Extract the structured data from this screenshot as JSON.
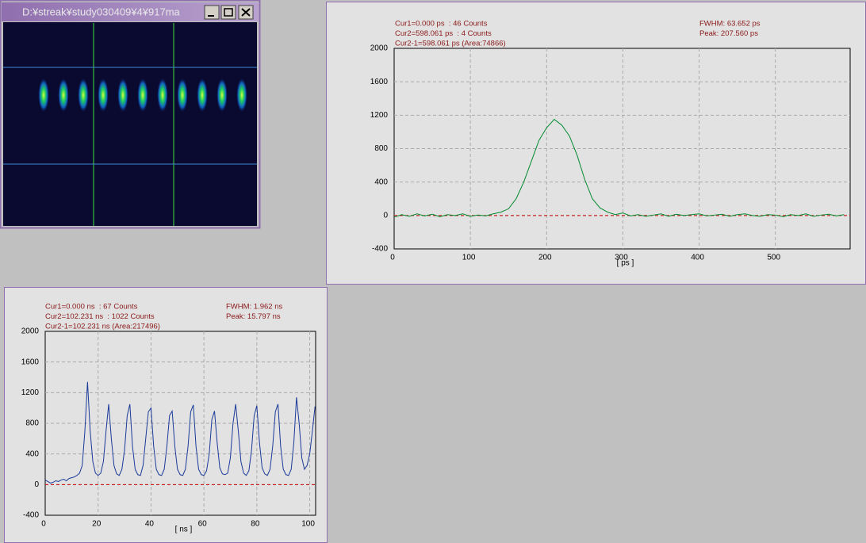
{
  "window": {
    "title": "D:¥streak¥study030409¥4¥917ma"
  },
  "chart_data": [
    {
      "type": "line",
      "annotations": [
        "Cur1=0.000 ps  : 46 Counts",
        "Cur2=598.061 ps  : 4 Counts",
        "Cur2-1=598.061 ps (Area:74866)"
      ],
      "annotations_right": [
        "FWHM: 63.652 ps",
        "Peak: 207.560 ps"
      ],
      "x_label": "[ ps ]",
      "x": [
        0,
        10,
        20,
        30,
        40,
        50,
        60,
        70,
        80,
        90,
        100,
        110,
        120,
        130,
        140,
        150,
        160,
        170,
        180,
        190,
        200,
        210,
        220,
        230,
        240,
        250,
        260,
        270,
        280,
        290,
        300,
        310,
        320,
        330,
        340,
        350,
        360,
        370,
        380,
        390,
        400,
        410,
        420,
        430,
        440,
        450,
        460,
        470,
        480,
        490,
        500,
        510,
        520,
        530,
        540,
        550,
        560,
        570,
        580,
        590
      ],
      "series": [
        {
          "color": "#008a2e",
          "values": [
            -20,
            10,
            -10,
            20,
            -5,
            15,
            -15,
            10,
            0,
            20,
            -10,
            5,
            -5,
            20,
            40,
            80,
            200,
            400,
            650,
            900,
            1050,
            1150,
            1080,
            950,
            720,
            430,
            200,
            90,
            40,
            10,
            30,
            -5,
            10,
            -10,
            5,
            20,
            -10,
            15,
            0,
            10,
            20,
            -5,
            5,
            15,
            -10,
            10,
            20,
            0,
            -10,
            10,
            5,
            -15,
            10,
            0,
            20,
            -10,
            5,
            15,
            -5,
            10
          ]
        }
      ],
      "xlim": [
        0,
        598.061
      ],
      "ylim": [
        -400,
        2000
      ],
      "xticks": [
        0,
        100,
        200,
        300,
        400,
        500
      ],
      "yticks": [
        -400,
        0,
        400,
        800,
        1200,
        1600,
        2000
      ],
      "grid": true,
      "zero_line": true,
      "zero_line_color": "#cc0000"
    },
    {
      "type": "line",
      "annotations": [
        "Cur1=0.000 ns  : 67 Counts",
        "Cur2=102.231 ns  : 1022 Counts",
        "Cur2-1=102.231 ns (Area:217496)"
      ],
      "annotations_right": [
        "FWHM: 1.962 ns",
        "Peak: 15.797 ns"
      ],
      "x_label": "[ ns ]",
      "x": [
        0,
        1,
        2,
        3,
        4,
        5,
        6,
        7,
        8,
        9,
        10,
        11,
        12,
        13,
        14,
        15,
        16,
        17,
        18,
        19,
        20,
        21,
        22,
        23,
        24,
        25,
        26,
        27,
        28,
        29,
        30,
        31,
        32,
        33,
        34,
        35,
        36,
        37,
        38,
        39,
        40,
        41,
        42,
        43,
        44,
        45,
        46,
        47,
        48,
        49,
        50,
        51,
        52,
        53,
        54,
        55,
        56,
        57,
        58,
        59,
        60,
        61,
        62,
        63,
        64,
        65,
        66,
        67,
        68,
        69,
        70,
        71,
        72,
        73,
        74,
        75,
        76,
        77,
        78,
        79,
        80,
        81,
        82,
        83,
        84,
        85,
        86,
        87,
        88,
        89,
        90,
        91,
        92,
        93,
        94,
        95,
        96,
        97,
        98,
        99,
        100,
        101,
        102
      ],
      "series": [
        {
          "color": "#1a3a9a",
          "values": [
            60,
            40,
            20,
            30,
            50,
            40,
            60,
            70,
            50,
            80,
            90,
            100,
            120,
            150,
            250,
            700,
            1340,
            700,
            300,
            150,
            120,
            150,
            300,
            700,
            1050,
            600,
            250,
            140,
            120,
            200,
            450,
            900,
            1050,
            500,
            200,
            130,
            120,
            250,
            600,
            950,
            1000,
            500,
            200,
            130,
            120,
            200,
            500,
            900,
            960,
            500,
            200,
            130,
            120,
            200,
            500,
            950,
            1040,
            500,
            200,
            130,
            120,
            180,
            400,
            850,
            960,
            550,
            220,
            140,
            130,
            150,
            350,
            800,
            1050,
            700,
            300,
            150,
            120,
            180,
            450,
            900,
            1030,
            550,
            220,
            140,
            120,
            200,
            500,
            950,
            1050,
            500,
            200,
            130,
            120,
            200,
            550,
            1140,
            800,
            350,
            200,
            250,
            400,
            700,
            1020
          ]
        }
      ],
      "xlim": [
        0,
        102.231
      ],
      "ylim": [
        -400,
        2000
      ],
      "xticks": [
        0,
        20,
        40,
        60,
        80,
        100
      ],
      "yticks": [
        -400,
        0,
        400,
        800,
        1200,
        1600,
        2000
      ],
      "grid": true,
      "zero_line": true,
      "zero_line_color": "#cc0000"
    }
  ]
}
